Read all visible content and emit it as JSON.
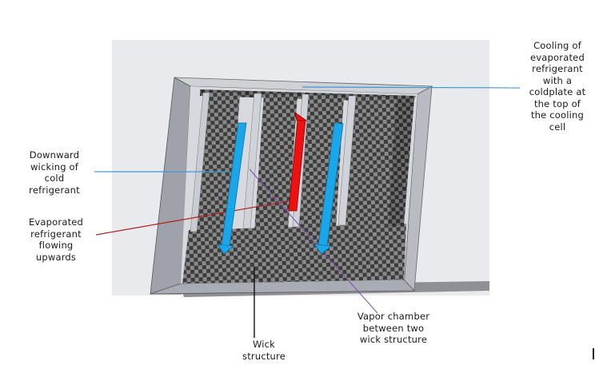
{
  "labels": {
    "cooling": "Cooling of\nevaporated\nrefrigerant\nwith a\ncoldplate at\nthe top of\nthe cooling\ncell",
    "downward": "Downward\nwicking of\ncold\nrefrigerant",
    "evaporated": "Evaporated\nrefrigerant\nflowing\nupwards",
    "vapor": "Vapor chamber\nbetween two\nwick structure",
    "wick": "Wick\nstructure"
  },
  "colors": {
    "cold_arrow": "#1aa7ea",
    "hot_arrow": "#ee1111",
    "cooling_leader": "#3a9ad9",
    "evaporated_leader": "#b02020",
    "vapor_leader": "#7a4fa8",
    "wick_leader": "#111111",
    "frame": "#a9acb4",
    "checker_dark": "#3c3c3c",
    "checker_light": "#8a8a8a"
  }
}
